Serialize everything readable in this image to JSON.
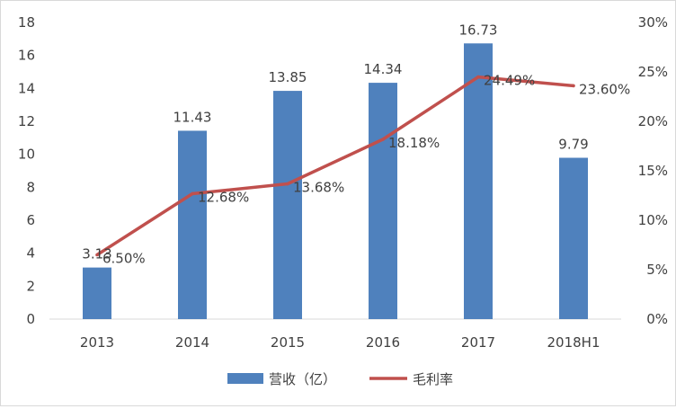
{
  "chart_data": {
    "type": "bar+line",
    "title": "",
    "categories": [
      "2013",
      "2014",
      "2015",
      "2016",
      "2017",
      "2018H1"
    ],
    "series": [
      {
        "name": "营收（亿）",
        "type": "bar",
        "axis": "left",
        "color": "#4f81bd",
        "values": [
          3.13,
          11.43,
          13.85,
          14.34,
          16.73,
          9.79
        ],
        "labels": [
          "3.13",
          "11.43",
          "13.85",
          "14.34",
          "16.73",
          "9.79"
        ]
      },
      {
        "name": "毛利率",
        "type": "line",
        "axis": "right",
        "color": "#c0504d",
        "values": [
          6.5,
          12.68,
          13.68,
          18.18,
          24.49,
          23.6
        ],
        "labels": [
          "6.50%",
          "12.68%",
          "13.68%",
          "18.18%",
          "24.49%",
          "23.60%"
        ]
      }
    ],
    "left_axis": {
      "range": [
        0,
        18
      ],
      "ticks": [
        0,
        2,
        4,
        6,
        8,
        10,
        12,
        14,
        16,
        18
      ],
      "tick_labels": [
        "0",
        "2",
        "4",
        "6",
        "8",
        "10",
        "12",
        "14",
        "16",
        "18"
      ]
    },
    "right_axis": {
      "range": [
        0,
        30
      ],
      "ticks": [
        0,
        5,
        10,
        15,
        20,
        25,
        30
      ],
      "tick_labels": [
        "0%",
        "5%",
        "10%",
        "15%",
        "20%",
        "25%",
        "30%"
      ]
    },
    "grid": false,
    "legend_position": "bottom"
  }
}
